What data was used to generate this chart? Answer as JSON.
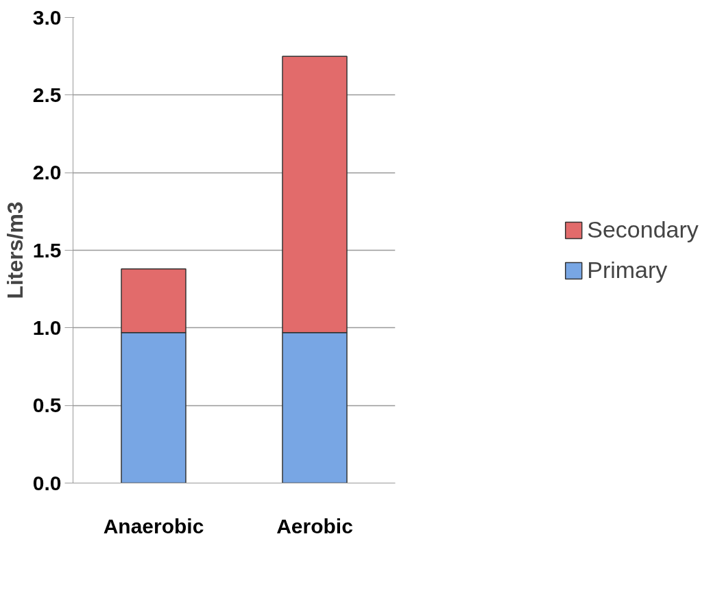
{
  "chart_data": {
    "type": "bar",
    "stacked": true,
    "ylabel": "Liters/m3",
    "categories": [
      "Anaerobic",
      "Aerobic"
    ],
    "series": [
      {
        "name": "Primary",
        "color": "#78a6e4",
        "values": [
          0.97,
          0.97
        ]
      },
      {
        "name": "Secondary",
        "color": "#e26b6b",
        "values": [
          0.41,
          1.78
        ]
      }
    ],
    "ylim": [
      0,
      3
    ],
    "yticks": [
      {
        "value": 0,
        "label": "0.0"
      },
      {
        "value": 0.5,
        "label": "0.5"
      },
      {
        "value": 1,
        "label": "1.0"
      },
      {
        "value": 1.5,
        "label": "1.5"
      },
      {
        "value": 2,
        "label": "2.0"
      },
      {
        "value": 2.5,
        "label": "2.5"
      },
      {
        "value": 3,
        "label": "3.0"
      }
    ],
    "grid": "y",
    "legend": "right"
  }
}
